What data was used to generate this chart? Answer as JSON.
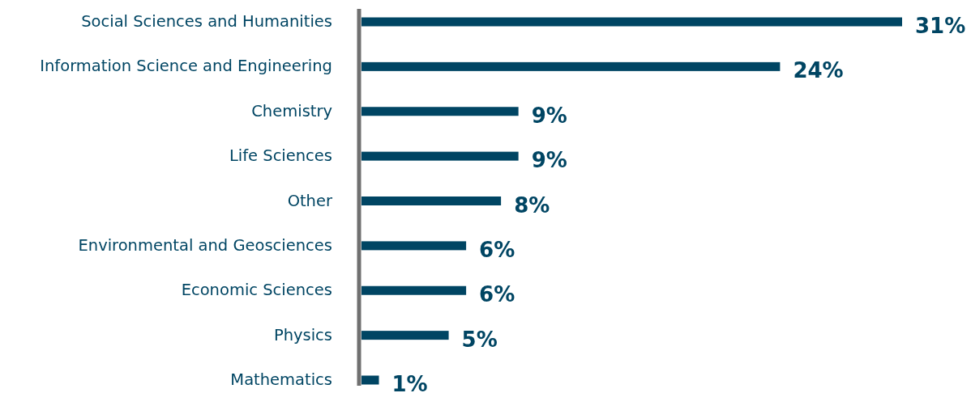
{
  "chart_data": {
    "type": "bar",
    "orientation": "horizontal",
    "categories": [
      "Social Sciences and Humanities",
      "Information Science and Engineering",
      "Chemistry",
      "Life Sciences",
      "Other",
      "Environmental and Geosciences",
      "Economic Sciences",
      "Physics",
      "Mathematics"
    ],
    "values": [
      31,
      24,
      9,
      9,
      8,
      6,
      6,
      5,
      1
    ],
    "value_labels": [
      "31%",
      "24%",
      "9%",
      "9%",
      "8%",
      "6%",
      "6%",
      "5%",
      "1%"
    ],
    "color": "#004563"
  }
}
